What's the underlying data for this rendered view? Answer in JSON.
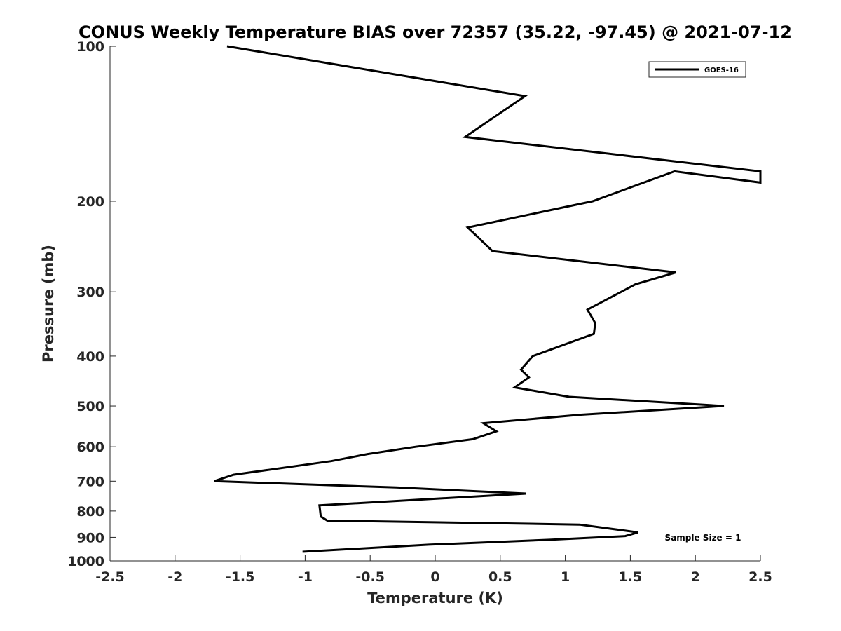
{
  "chart_data": {
    "type": "line",
    "title": "CONUS Weekly Temperature BIAS over 72357 (35.22, -97.45) @ 2021-07-12",
    "xlabel": "Temperature (K)",
    "ylabel": "Pressure (mb)",
    "xlim": [
      -2.5,
      2.5
    ],
    "ylim": [
      100,
      1000
    ],
    "y_scale": "log",
    "y_reversed": true,
    "grid": false,
    "legend_position": "top-right",
    "x_ticks": [
      {
        "value": -2.5,
        "label": "-2.5"
      },
      {
        "value": -2,
        "label": "-2"
      },
      {
        "value": -1.5,
        "label": "-1.5"
      },
      {
        "value": -1,
        "label": "-1"
      },
      {
        "value": -0.5,
        "label": "-0.5"
      },
      {
        "value": 0,
        "label": "0"
      },
      {
        "value": 0.5,
        "label": "0.5"
      },
      {
        "value": 1,
        "label": "1"
      },
      {
        "value": 1.5,
        "label": "1.5"
      },
      {
        "value": 2,
        "label": "2"
      },
      {
        "value": 2.5,
        "label": "2.5"
      }
    ],
    "y_ticks": [
      {
        "value": 100,
        "label": "100"
      },
      {
        "value": 200,
        "label": "200"
      },
      {
        "value": 300,
        "label": "300"
      },
      {
        "value": 400,
        "label": "400"
      },
      {
        "value": 500,
        "label": "500"
      },
      {
        "value": 600,
        "label": "600"
      },
      {
        "value": 700,
        "label": "700"
      },
      {
        "value": 800,
        "label": "800"
      },
      {
        "value": 900,
        "label": "900"
      },
      {
        "value": 1000,
        "label": "1000"
      }
    ],
    "series": [
      {
        "name": "GOES-16",
        "color": "#000000",
        "points": [
          {
            "x": -1.6,
            "y": 100
          },
          {
            "x": 0.69,
            "y": 125
          },
          {
            "x": 0.23,
            "y": 150
          },
          {
            "x": 2.5,
            "y": 175
          },
          {
            "x": 2.5,
            "y": 184
          },
          {
            "x": 1.84,
            "y": 175
          },
          {
            "x": 1.21,
            "y": 200
          },
          {
            "x": 0.25,
            "y": 225
          },
          {
            "x": 0.44,
            "y": 250
          },
          {
            "x": 1.85,
            "y": 275
          },
          {
            "x": 1.54,
            "y": 290
          },
          {
            "x": 1.17,
            "y": 325
          },
          {
            "x": 1.23,
            "y": 345
          },
          {
            "x": 1.22,
            "y": 362
          },
          {
            "x": 0.75,
            "y": 400
          },
          {
            "x": 0.66,
            "y": 425
          },
          {
            "x": 0.72,
            "y": 440
          },
          {
            "x": 0.61,
            "y": 460
          },
          {
            "x": 1.03,
            "y": 480
          },
          {
            "x": 2.22,
            "y": 500
          },
          {
            "x": 1.12,
            "y": 520
          },
          {
            "x": 0.37,
            "y": 540
          },
          {
            "x": 0.47,
            "y": 560
          },
          {
            "x": 0.29,
            "y": 580
          },
          {
            "x": -0.15,
            "y": 600
          },
          {
            "x": -0.52,
            "y": 620
          },
          {
            "x": -0.8,
            "y": 640
          },
          {
            "x": -1.55,
            "y": 680
          },
          {
            "x": -1.7,
            "y": 700
          },
          {
            "x": -0.3,
            "y": 720
          },
          {
            "x": 0.7,
            "y": 740
          },
          {
            "x": -0.89,
            "y": 780
          },
          {
            "x": -0.88,
            "y": 820
          },
          {
            "x": -0.83,
            "y": 835
          },
          {
            "x": 1.11,
            "y": 850
          },
          {
            "x": 1.56,
            "y": 880
          },
          {
            "x": 1.46,
            "y": 895
          },
          {
            "x": 0.88,
            "y": 910
          },
          {
            "x": -0.05,
            "y": 930
          },
          {
            "x": -1.02,
            "y": 960
          }
        ]
      }
    ],
    "annotations": [
      {
        "text": "Sample Size = 1",
        "position": "bottom-right"
      }
    ]
  }
}
